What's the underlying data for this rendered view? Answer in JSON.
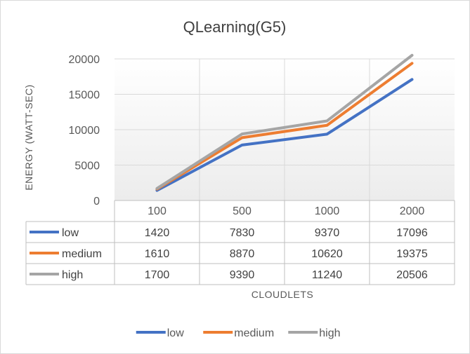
{
  "chart_data": {
    "type": "line",
    "title": "QLearning(G5)",
    "xlabel": "CLOUDLETS",
    "ylabel": "ENERGY (WATT-SEC)",
    "categories": [
      "100",
      "500",
      "1000",
      "2000"
    ],
    "ylim": [
      0,
      20000
    ],
    "yticks": [
      0,
      5000,
      10000,
      15000,
      20000
    ],
    "yticks_labels": [
      "0",
      "5000",
      "10000",
      "15000",
      "20000"
    ],
    "grid": true,
    "legend_position": "bottom",
    "series": [
      {
        "name": "low",
        "color": "#4472C4",
        "values": [
          1420,
          7830,
          9370,
          17096
        ],
        "labels": [
          "1420",
          "7830",
          "9370",
          "17096"
        ]
      },
      {
        "name": "medium",
        "color": "#ED7D31",
        "values": [
          1610,
          8870,
          10620,
          19375
        ],
        "labels": [
          "1610",
          "8870",
          "10620",
          "19375"
        ]
      },
      {
        "name": "high",
        "color": "#A5A5A5",
        "values": [
          1700,
          9390,
          11240,
          20506
        ],
        "labels": [
          "1700",
          "9390",
          "11240",
          "20506"
        ]
      }
    ]
  }
}
